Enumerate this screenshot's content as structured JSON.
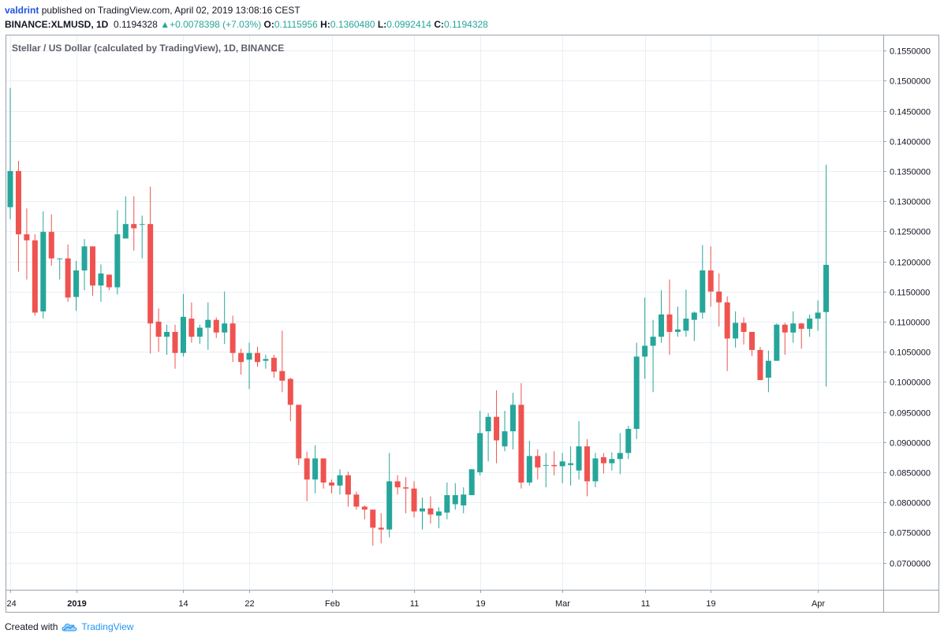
{
  "header": {
    "author": "valdrint",
    "published_text": "published on TradingView.com, April 02, 2019 13:08:16 CEST",
    "symbol": "BINANCE:XLMUSD, 1D",
    "last": "0.1194328",
    "change_arrow": "▲",
    "change": "+0.0078398 (+7.03%)",
    "open_label": "O:",
    "open": "0.1115956",
    "high_label": "H:",
    "high": "0.1360480",
    "low_label": "L:",
    "low": "0.0992414",
    "close_label": "C:",
    "close": "0.1194328"
  },
  "footer": {
    "created_with": "Created with",
    "brand": "TradingView",
    "logo_icon": "tradingview-cloud-icon"
  },
  "colors": {
    "up": "#26a69a",
    "down": "#ef5350",
    "grid": "#e9eff5",
    "axis_text": "#131722"
  },
  "chart_data": {
    "type": "candlestick",
    "title": "Stellar / US Dollar (calculated by TradingView), 1D, BINANCE",
    "ylim": [
      0.0655,
      0.1575
    ],
    "y_ticks": [
      "0.1550000",
      "0.1500000",
      "0.1450000",
      "0.1400000",
      "0.1350000",
      "0.1300000",
      "0.1250000",
      "0.1200000",
      "0.1150000",
      "0.1100000",
      "0.1050000",
      "0.1000000",
      "0.0950000",
      "0.0900000",
      "0.0850000",
      "0.0800000",
      "0.0750000",
      "0.0700000"
    ],
    "x_ticks": [
      {
        "label": "24",
        "index": 0
      },
      {
        "label": "2019",
        "index": 8,
        "bold": true
      },
      {
        "label": "14",
        "index": 21
      },
      {
        "label": "22",
        "index": 29
      },
      {
        "label": "Feb",
        "index": 39
      },
      {
        "label": "11",
        "index": 49
      },
      {
        "label": "19",
        "index": 57
      },
      {
        "label": "Mar",
        "index": 67
      },
      {
        "label": "11",
        "index": 77
      },
      {
        "label": "19",
        "index": 85
      },
      {
        "label": "Apr",
        "index": 98
      }
    ],
    "candles": [
      [
        0.129,
        0.1488,
        0.127,
        0.135
      ],
      [
        0.135,
        0.1367,
        0.1183,
        0.1245
      ],
      [
        0.1245,
        0.1288,
        0.117,
        0.1235
      ],
      [
        0.1235,
        0.1245,
        0.111,
        0.1115
      ],
      [
        0.1117,
        0.1283,
        0.1105,
        0.1249
      ],
      [
        0.1249,
        0.1278,
        0.1193,
        0.1205
      ],
      [
        0.1205,
        0.1205,
        0.117,
        0.1205
      ],
      [
        0.1205,
        0.1228,
        0.1133,
        0.114
      ],
      [
        0.1141,
        0.1201,
        0.1118,
        0.1185
      ],
      [
        0.1185,
        0.1237,
        0.1152,
        0.1225
      ],
      [
        0.1225,
        0.1225,
        0.1143,
        0.116
      ],
      [
        0.116,
        0.1195,
        0.1133,
        0.118
      ],
      [
        0.1178,
        0.1178,
        0.1152,
        0.1157
      ],
      [
        0.1157,
        0.1285,
        0.1145,
        0.1245
      ],
      [
        0.1238,
        0.1308,
        0.1238,
        0.1262
      ],
      [
        0.1262,
        0.1308,
        0.1218,
        0.1255
      ],
      [
        0.1262,
        0.1276,
        0.1205,
        0.1262
      ],
      [
        0.1262,
        0.1324,
        0.1047,
        0.1097
      ],
      [
        0.11,
        0.1122,
        0.105,
        0.1075
      ],
      [
        0.1075,
        0.1095,
        0.1045,
        0.1083
      ],
      [
        0.1083,
        0.1095,
        0.1022,
        0.1048
      ],
      [
        0.1048,
        0.1146,
        0.1042,
        0.1108
      ],
      [
        0.1105,
        0.1132,
        0.1065,
        0.1075
      ],
      [
        0.1075,
        0.1095,
        0.1063,
        0.109
      ],
      [
        0.109,
        0.1132,
        0.1053,
        0.1103
      ],
      [
        0.1103,
        0.1107,
        0.1073,
        0.1082
      ],
      [
        0.1082,
        0.115,
        0.1063,
        0.1097
      ],
      [
        0.1097,
        0.111,
        0.1033,
        0.1048
      ],
      [
        0.1048,
        0.1055,
        0.1012,
        0.1033
      ],
      [
        0.1037,
        0.1065,
        0.0988,
        0.1048
      ],
      [
        0.1048,
        0.1058,
        0.1025,
        0.1033
      ],
      [
        0.1035,
        0.1045,
        0.1022,
        0.1038
      ],
      [
        0.104,
        0.1045,
        0.1007,
        0.1017
      ],
      [
        0.1018,
        0.1085,
        0.0983,
        0.1002
      ],
      [
        0.1005,
        0.1007,
        0.0935,
        0.0962
      ],
      [
        0.0962,
        0.0962,
        0.0862,
        0.0873
      ],
      [
        0.0873,
        0.0884,
        0.0802,
        0.0838
      ],
      [
        0.0838,
        0.0895,
        0.0815,
        0.0873
      ],
      [
        0.0873,
        0.0873,
        0.0823,
        0.0833
      ],
      [
        0.0833,
        0.0838,
        0.0815,
        0.0828
      ],
      [
        0.0828,
        0.0855,
        0.0813,
        0.0845
      ],
      [
        0.0845,
        0.0851,
        0.0793,
        0.0813
      ],
      [
        0.0813,
        0.0818,
        0.0788,
        0.0793
      ],
      [
        0.0793,
        0.0795,
        0.0772,
        0.0788
      ],
      [
        0.0788,
        0.0788,
        0.0728,
        0.0758
      ],
      [
        0.0758,
        0.0782,
        0.0732,
        0.0755
      ],
      [
        0.0755,
        0.0882,
        0.0742,
        0.0835
      ],
      [
        0.0835,
        0.0845,
        0.0813,
        0.0825
      ],
      [
        0.0825,
        0.0842,
        0.0782,
        0.0823
      ],
      [
        0.0823,
        0.0835,
        0.0775,
        0.0785
      ],
      [
        0.0785,
        0.0808,
        0.0755,
        0.079
      ],
      [
        0.079,
        0.081,
        0.0765,
        0.078
      ],
      [
        0.0778,
        0.0792,
        0.0757,
        0.0785
      ],
      [
        0.0783,
        0.0833,
        0.0772,
        0.0812
      ],
      [
        0.0797,
        0.0832,
        0.0788,
        0.0812
      ],
      [
        0.0795,
        0.0825,
        0.0782,
        0.0813
      ],
      [
        0.0812,
        0.0855,
        0.0812,
        0.0855
      ],
      [
        0.085,
        0.0952,
        0.0845,
        0.0915
      ],
      [
        0.0918,
        0.0948,
        0.0868,
        0.0942
      ],
      [
        0.0942,
        0.0986,
        0.0865,
        0.0903
      ],
      [
        0.0893,
        0.0952,
        0.0885,
        0.0918
      ],
      [
        0.0918,
        0.0982,
        0.0888,
        0.0962
      ],
      [
        0.0962,
        0.0998,
        0.0823,
        0.0833
      ],
      [
        0.0833,
        0.0902,
        0.0828,
        0.0877
      ],
      [
        0.0877,
        0.0888,
        0.0838,
        0.0858
      ],
      [
        0.0862,
        0.0882,
        0.0825,
        0.0862
      ],
      [
        0.0862,
        0.0885,
        0.0845,
        0.086
      ],
      [
        0.086,
        0.0882,
        0.0832,
        0.0868
      ],
      [
        0.0862,
        0.0893,
        0.0828,
        0.0865
      ],
      [
        0.0853,
        0.0935,
        0.0838,
        0.0893
      ],
      [
        0.0893,
        0.0905,
        0.081,
        0.0835
      ],
      [
        0.0835,
        0.0882,
        0.0825,
        0.0873
      ],
      [
        0.0875,
        0.0882,
        0.0848,
        0.0865
      ],
      [
        0.0865,
        0.0883,
        0.0853,
        0.0872
      ],
      [
        0.0872,
        0.0915,
        0.0847,
        0.0882
      ],
      [
        0.0882,
        0.0927,
        0.0872,
        0.0922
      ],
      [
        0.0922,
        0.1065,
        0.0905,
        0.1042
      ],
      [
        0.1042,
        0.114,
        0.1005,
        0.106
      ],
      [
        0.106,
        0.1103,
        0.0983,
        0.1075
      ],
      [
        0.1075,
        0.1152,
        0.1065,
        0.1112
      ],
      [
        0.1112,
        0.117,
        0.1045,
        0.1083
      ],
      [
        0.1083,
        0.1125,
        0.1075,
        0.1087
      ],
      [
        0.1085,
        0.1153,
        0.1075,
        0.1105
      ],
      [
        0.1103,
        0.1117,
        0.1068,
        0.1115
      ],
      [
        0.1115,
        0.1227,
        0.1105,
        0.1185
      ],
      [
        0.1185,
        0.1225,
        0.1125,
        0.115
      ],
      [
        0.115,
        0.118,
        0.1092,
        0.1132
      ],
      [
        0.1132,
        0.1142,
        0.1018,
        0.1072
      ],
      [
        0.1072,
        0.1117,
        0.1057,
        0.1098
      ],
      [
        0.1098,
        0.1107,
        0.1062,
        0.1083
      ],
      [
        0.1083,
        0.1083,
        0.1043,
        0.1053
      ],
      [
        0.1053,
        0.1058,
        0.1003,
        0.1003
      ],
      [
        0.1007,
        0.1052,
        0.0983,
        0.1035
      ],
      [
        0.1035,
        0.1097,
        0.1035,
        0.1095
      ],
      [
        0.1095,
        0.1098,
        0.1045,
        0.1082
      ],
      [
        0.1082,
        0.1117,
        0.1065,
        0.1097
      ],
      [
        0.1097,
        0.1098,
        0.1055,
        0.1088
      ],
      [
        0.1088,
        0.1112,
        0.1075,
        0.1105
      ],
      [
        0.1105,
        0.1135,
        0.1085,
        0.1115
      ],
      [
        0.1115956,
        0.136048,
        0.0992414,
        0.1194328
      ]
    ]
  }
}
